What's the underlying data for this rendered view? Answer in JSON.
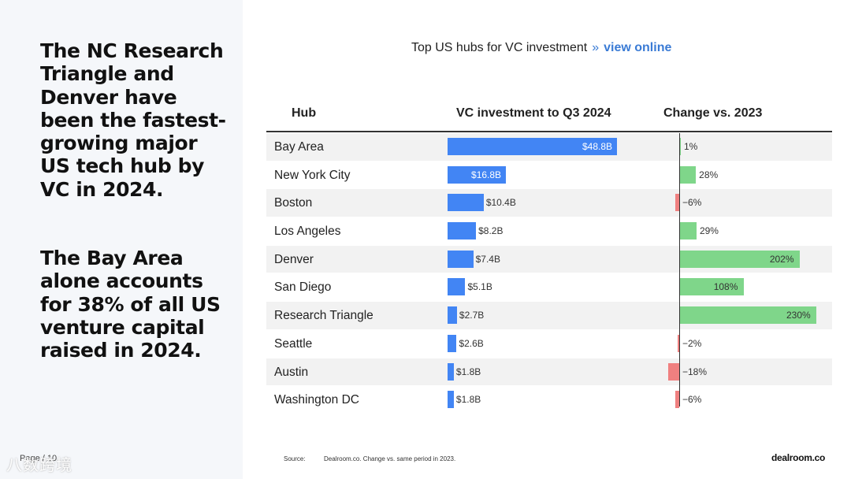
{
  "headline_1": "The NC Research Triangle and Denver have been the fastest-growing major US tech hub by VC in 2024.",
  "headline_2": "The Bay Area alone accounts for 38% of all US venture capital raised in 2024.",
  "page_number": "Page / 10",
  "watermark": "八数跨境",
  "chart_title": "Top US hubs for VC investment",
  "chart_title_sep": "»",
  "chart_link": "view online",
  "source_label": "Source:",
  "source_text": "Dealroom.co. Change vs. same period in 2023.",
  "brand": "dealroom.co",
  "colors": {
    "vc_bar": "#4285f4",
    "positive_change": "#7fd68a",
    "negative_change": "#f08080",
    "link": "#3a7bd5"
  },
  "chart_data": {
    "type": "table",
    "columns": [
      "Hub",
      "VC investment to Q3 2024",
      "Change vs. 2023"
    ],
    "rows": [
      {
        "hub": "Bay Area",
        "vc": 48.8,
        "vc_label": "$48.8B",
        "change": 1,
        "change_label": "1%"
      },
      {
        "hub": "New York City",
        "vc": 16.8,
        "vc_label": "$16.8B",
        "change": 28,
        "change_label": "28%"
      },
      {
        "hub": "Boston",
        "vc": 10.4,
        "vc_label": "$10.4B",
        "change": -6,
        "change_label": "−6%"
      },
      {
        "hub": "Los Angeles",
        "vc": 8.2,
        "vc_label": "$8.2B",
        "change": 29,
        "change_label": "29%"
      },
      {
        "hub": "Denver",
        "vc": 7.4,
        "vc_label": "$7.4B",
        "change": 202,
        "change_label": "202%"
      },
      {
        "hub": "San Diego",
        "vc": 5.1,
        "vc_label": "$5.1B",
        "change": 108,
        "change_label": "108%"
      },
      {
        "hub": "Research Triangle",
        "vc": 2.7,
        "vc_label": "$2.7B",
        "change": 230,
        "change_label": "230%"
      },
      {
        "hub": "Seattle",
        "vc": 2.6,
        "vc_label": "$2.6B",
        "change": -2,
        "change_label": "−2%"
      },
      {
        "hub": "Austin",
        "vc": 1.8,
        "vc_label": "$1.8B",
        "change": -18,
        "change_label": "−18%"
      },
      {
        "hub": "Washington DC",
        "vc": 1.8,
        "vc_label": "$1.8B",
        "change": -6,
        "change_label": "−6%"
      }
    ]
  }
}
